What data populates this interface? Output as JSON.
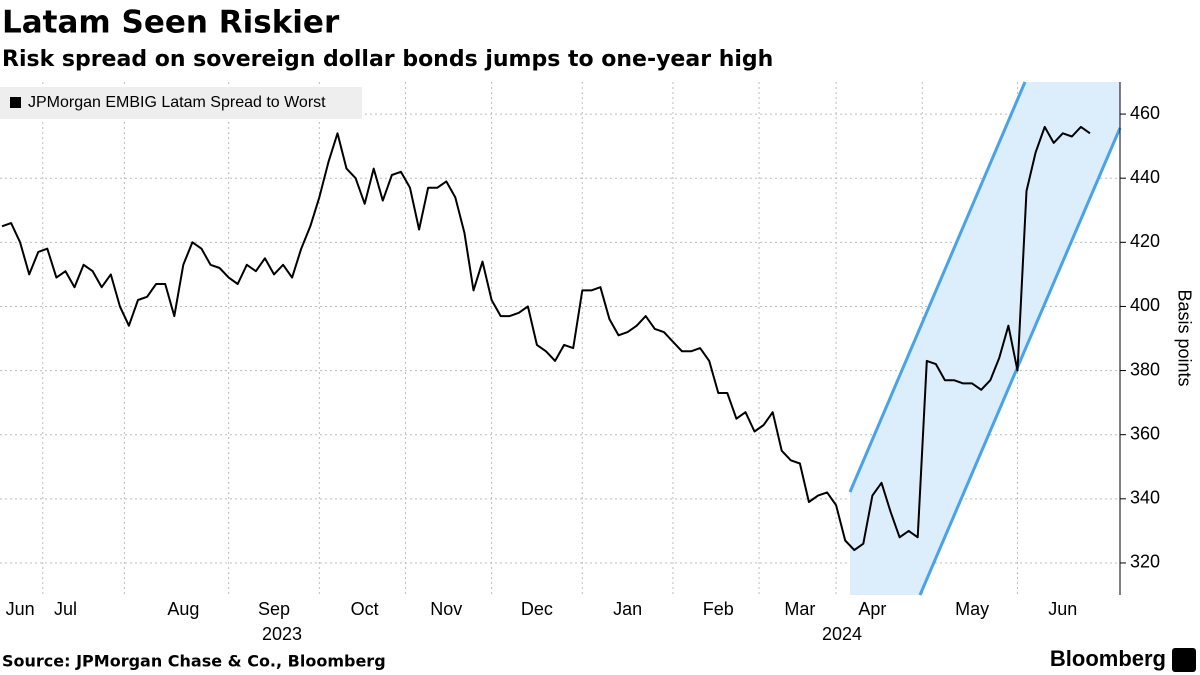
{
  "chart_data": {
    "type": "line",
    "title": "Latam Seen Riskier",
    "subtitle": "Risk spread on sovereign dollar bonds jumps to one-year high",
    "y_label": "Basis points",
    "source": "Source: JPMorgan Chase & Co., Bloomberg",
    "brand": "Bloomberg",
    "x_group_labels": [
      "2023",
      "2024"
    ],
    "categories": [
      null,
      null,
      "Jun",
      null,
      null,
      null,
      null,
      "Jul",
      null,
      null,
      null,
      null,
      null,
      null,
      null,
      null,
      null,
      null,
      null,
      null,
      "Aug",
      null,
      null,
      null,
      null,
      null,
      null,
      null,
      null,
      null,
      "Sep",
      null,
      null,
      null,
      null,
      null,
      null,
      null,
      null,
      null,
      "Oct",
      null,
      null,
      null,
      null,
      null,
      null,
      null,
      null,
      "Nov",
      null,
      null,
      null,
      null,
      null,
      null,
      null,
      null,
      null,
      "Dec",
      null,
      null,
      null,
      null,
      null,
      null,
      null,
      null,
      null,
      "Jan",
      null,
      null,
      null,
      null,
      null,
      null,
      null,
      null,
      null,
      "Feb",
      null,
      null,
      null,
      null,
      null,
      null,
      null,
      null,
      "Mar",
      null,
      null,
      null,
      null,
      null,
      null,
      null,
      "Apr",
      null,
      null,
      null,
      null,
      null,
      null,
      null,
      null,
      null,
      null,
      "May",
      null,
      null,
      null,
      null,
      null,
      null,
      null,
      null,
      null,
      "Jun",
      null,
      null,
      null
    ],
    "series": [
      {
        "name": "JPMorgan EMBIG Latam Spread to Worst",
        "color": "#000000",
        "values": [
          425,
          426,
          420,
          410,
          417,
          418,
          409,
          411,
          406,
          413,
          411,
          406,
          410,
          400,
          394,
          402,
          403,
          407,
          407,
          397,
          413,
          420,
          418,
          413,
          412,
          409,
          407,
          413,
          411,
          415,
          410,
          413,
          409,
          418,
          425,
          434,
          445,
          454,
          443,
          440,
          432,
          443,
          433,
          441,
          442,
          437,
          424,
          437,
          437,
          439,
          434,
          423,
          405,
          414,
          402,
          397,
          397,
          398,
          400,
          388,
          386,
          383,
          388,
          387,
          405,
          405,
          406,
          396,
          391,
          392,
          394,
          397,
          393,
          392,
          389,
          386,
          386,
          387,
          383,
          373,
          373,
          365,
          367,
          361,
          363,
          367,
          355,
          352,
          351,
          339,
          341,
          342,
          338,
          327,
          324,
          326,
          341,
          345,
          336,
          328,
          330,
          328,
          383,
          382,
          377,
          377,
          376,
          376,
          374,
          377,
          384,
          394,
          380,
          436,
          448,
          456,
          451,
          454,
          453,
          456,
          454
        ]
      }
    ],
    "ylim": [
      310,
      470
    ],
    "yticks": [
      320,
      340,
      360,
      380,
      400,
      420,
      440,
      460
    ],
    "grid": true
  }
}
